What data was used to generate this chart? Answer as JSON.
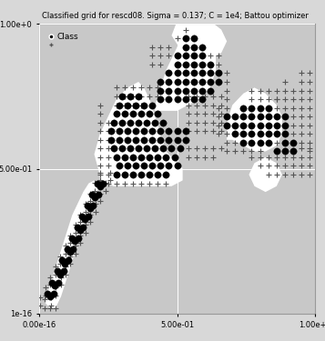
{
  "title": "Classified grid for rescd08. Sigma = 0.137; C = 1e4; Battou optimizer",
  "legend_label_dot": "Class",
  "background_color": "#c8c8c8",
  "white_region_color": "#ffffff",
  "dot_color": "#000000",
  "plus_color": "#555555",
  "xlim": [
    0,
    1.0
  ],
  "ylim": [
    0,
    1.0
  ],
  "figsize": [
    3.57,
    3.75
  ],
  "dpi": 100,
  "dot_size": 28,
  "plus_size": 20,
  "grid_color": "#ffffff",
  "title_fontsize": 6.0,
  "legend_fontsize": 6.5,
  "tick_fontsize": 6.0,
  "fig_bg": "#d8d8d8"
}
